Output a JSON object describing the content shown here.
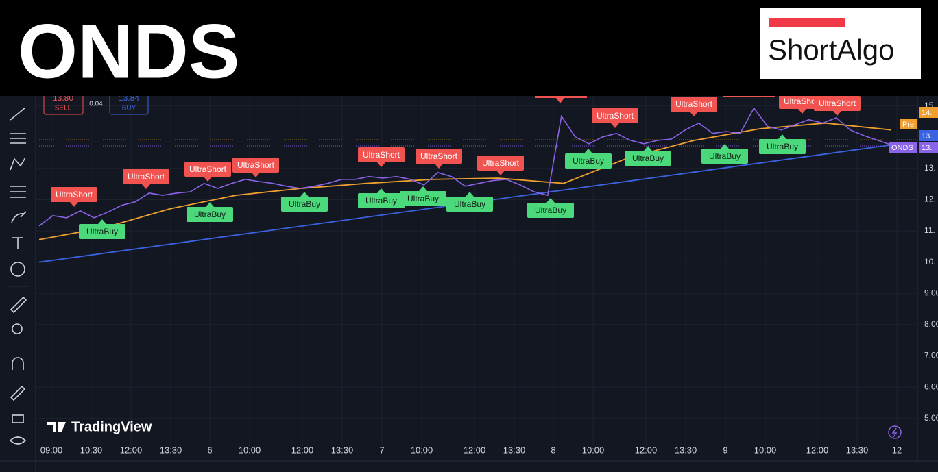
{
  "header": {
    "title": "ONDS",
    "logo": "ShortAlgo"
  },
  "order_panel": {
    "sell_price": "13.80",
    "sell_label": "SELL",
    "spread": "0.04",
    "buy_price": "13.84",
    "buy_label": "BUY"
  },
  "watermark": "TradingView",
  "chart_data": {
    "type": "line",
    "x_axis_labels": [
      "09:00",
      "10:30",
      "12:00",
      "13:30",
      "6",
      "10:00",
      "12:00",
      "13:30",
      "7",
      "10:00",
      "12:00",
      "13:30",
      "8",
      "10:00",
      "12:00",
      "13:30",
      "9",
      "10:00",
      "12:00",
      "13:30",
      "12"
    ],
    "ylim": [
      4.25,
      15.32
    ],
    "yticks": [
      {
        "value": 15,
        "label": "15."
      },
      {
        "value": 13,
        "label": "13."
      },
      {
        "value": 12,
        "label": "12."
      },
      {
        "value": 11,
        "label": "11."
      },
      {
        "value": 10,
        "label": "10."
      },
      {
        "value": 9,
        "label": "9.00"
      },
      {
        "value": 8,
        "label": "8.00"
      },
      {
        "value": 7,
        "label": "7.00"
      },
      {
        "value": 6,
        "label": "6.00"
      },
      {
        "value": 5,
        "label": "5.00"
      }
    ],
    "grid": true,
    "series": [
      {
        "name": "ONDS",
        "color": "#8a63e8",
        "values": [
          11.16,
          11.49,
          11.42,
          11.64,
          11.42,
          11.6,
          11.82,
          11.93,
          12.21,
          12.14,
          12.21,
          12.25,
          12.52,
          12.36,
          12.52,
          12.65,
          12.58,
          12.52,
          12.43,
          12.36,
          12.43,
          12.52,
          12.65,
          12.65,
          12.74,
          12.69,
          12.74,
          12.65,
          12.47,
          12.87,
          12.74,
          12.43,
          12.52,
          12.61,
          12.65,
          12.47,
          12.25,
          12.14,
          14.67,
          14.01,
          13.79,
          14.01,
          14.12,
          13.9,
          13.79,
          13.9,
          13.94,
          14.23,
          14.45,
          14.12,
          14.18,
          14.12,
          14.93,
          14.34,
          14.23,
          14.4,
          14.56,
          14.45,
          14.62,
          14.23,
          14.05,
          13.9,
          13.75
        ]
      },
      {
        "color": "#f0a030",
        "values": [
          10.72,
          11.11,
          11.71,
          12.14,
          12.36,
          12.52,
          12.65,
          12.69,
          12.52,
          13.35,
          13.9,
          14.27,
          14.45,
          14.23
        ]
      },
      {
        "color": "#3b62e0",
        "values": [
          10.0,
          13.75
        ]
      }
    ],
    "annotations": [
      "UltraShort",
      "UltraBuy",
      "UltraShort",
      "UltraBuy",
      "UltraShort",
      "UltraShort",
      "UltraBuy",
      "UltraShort",
      "UltraBuy",
      "UltraShort",
      "UltraBuy",
      "UltraBuy",
      "UltraShort",
      "UltraBuy",
      "UltraShort",
      "UltraBuy",
      "UltraBuy",
      "UltraShort",
      "UltraBuy",
      "UltraShort",
      "UltraShort",
      "UltraBuy"
    ],
    "price_labels": [
      {
        "label": "14.",
        "color": "#f0a030"
      },
      {
        "label": "Pre",
        "color": "#f0a030"
      },
      {
        "label": "13.",
        "color": "#3b62e0"
      },
      {
        "label": "ONDS",
        "color": "#8a63e8"
      },
      {
        "label": "13.",
        "color": "#8a63e8"
      }
    ]
  }
}
